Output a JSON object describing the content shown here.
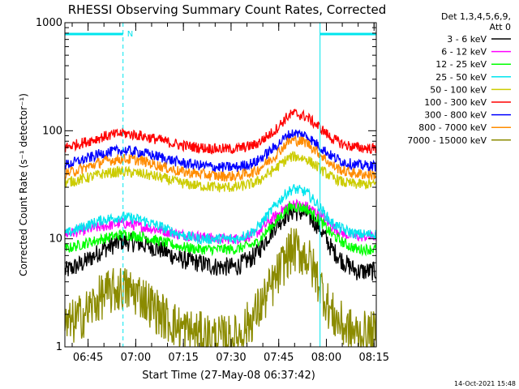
{
  "chart_data": {
    "type": "line",
    "title": "RHESSI Observing Summary Count Rates, Corrected",
    "xlabel": "Start Time (27-May-08 06:37:42)",
    "ylabel": "Corrected Count Rate (s⁻¹ detector⁻¹)",
    "yscale": "log",
    "ylim": [
      1,
      1000
    ],
    "xlim_minutes": [
      0,
      98
    ],
    "x_ticks": [
      {
        "label": "06:45",
        "minutes": 7.3
      },
      {
        "label": "07:00",
        "minutes": 22.3
      },
      {
        "label": "07:15",
        "minutes": 37.3
      },
      {
        "label": "07:30",
        "minutes": 52.3
      },
      {
        "label": "07:45",
        "minutes": 67.3
      },
      {
        "label": "08:00",
        "minutes": 82.3
      },
      {
        "label": "08:15",
        "minutes": 97.3
      }
    ],
    "y_ticks": [
      {
        "label": "1",
        "value": 1
      },
      {
        "label": "10",
        "value": 10
      },
      {
        "label": "100",
        "value": 100
      },
      {
        "label": "1000",
        "value": 1000
      }
    ],
    "grid": false,
    "legend_position": "right",
    "legend_header": [
      "Det 1,3,4,5,6,9,",
      "Att 0"
    ],
    "series": [
      {
        "name": "3 - 6 keV",
        "color": "#000000",
        "x": [
          0,
          6,
          12,
          18,
          24,
          30,
          36,
          42,
          48,
          54,
          60,
          66,
          70,
          72,
          76,
          80,
          84,
          88,
          92,
          98
        ],
        "values": [
          5,
          6,
          8,
          9.5,
          9,
          8,
          6.5,
          6,
          5.5,
          5.5,
          7,
          13,
          17,
          18,
          17,
          13,
          8,
          6,
          5,
          5
        ]
      },
      {
        "name": "6 - 12 keV",
        "color": "#ff00ff",
        "x": [
          0,
          6,
          12,
          18,
          24,
          30,
          36,
          42,
          48,
          54,
          60,
          66,
          70,
          72,
          76,
          80,
          84,
          88,
          92,
          98
        ],
        "values": [
          11,
          12,
          13,
          14,
          13,
          12,
          11,
          10.5,
          10,
          10,
          11,
          16,
          20,
          21,
          20,
          17,
          13,
          11,
          10.5,
          10.5
        ]
      },
      {
        "name": "12 - 25 keV",
        "color": "#00ff00",
        "x": [
          0,
          6,
          12,
          18,
          24,
          30,
          36,
          42,
          48,
          54,
          60,
          66,
          70,
          72,
          76,
          80,
          84,
          88,
          92,
          98
        ],
        "values": [
          8,
          9,
          10,
          11,
          10.5,
          9.5,
          8.5,
          8,
          8,
          8,
          9,
          14,
          19,
          20,
          19,
          15,
          11,
          9,
          8,
          8
        ]
      },
      {
        "name": "25 - 50 keV",
        "color": "#00e5ee",
        "x": [
          0,
          6,
          12,
          18,
          24,
          30,
          36,
          42,
          48,
          54,
          60,
          66,
          70,
          72,
          76,
          80,
          84,
          88,
          92,
          98
        ],
        "values": [
          11,
          13,
          15,
          16,
          15,
          13,
          11,
          10,
          10,
          10,
          12,
          20,
          27,
          29,
          27,
          20,
          14,
          12,
          11,
          11
        ]
      },
      {
        "name": "50 - 100 keV",
        "color": "#cccc00",
        "x": [
          0,
          6,
          12,
          18,
          24,
          30,
          36,
          42,
          48,
          54,
          60,
          66,
          70,
          72,
          76,
          80,
          84,
          88,
          92,
          98
        ],
        "values": [
          33,
          36,
          40,
          42,
          40,
          37,
          33,
          31,
          30,
          30,
          33,
          44,
          55,
          58,
          55,
          45,
          37,
          33,
          32,
          32
        ]
      },
      {
        "name": "100 - 300 keV",
        "color": "#ff0000",
        "x": [
          0,
          6,
          12,
          18,
          24,
          30,
          36,
          42,
          48,
          54,
          60,
          66,
          70,
          72,
          76,
          80,
          84,
          88,
          92,
          98
        ],
        "values": [
          70,
          78,
          88,
          95,
          90,
          82,
          74,
          70,
          68,
          68,
          74,
          100,
          135,
          145,
          135,
          108,
          85,
          74,
          70,
          68
        ]
      },
      {
        "name": "300 - 800 keV",
        "color": "#0000ff",
        "x": [
          0,
          6,
          12,
          18,
          24,
          30,
          36,
          42,
          48,
          54,
          60,
          66,
          70,
          72,
          76,
          80,
          84,
          88,
          92,
          98
        ],
        "values": [
          48,
          54,
          62,
          66,
          63,
          57,
          51,
          48,
          46,
          46,
          51,
          70,
          90,
          95,
          90,
          72,
          58,
          51,
          48,
          47
        ]
      },
      {
        "name": "800 - 7000 keV",
        "color": "#ff8c00",
        "x": [
          0,
          6,
          12,
          18,
          24,
          30,
          36,
          42,
          48,
          54,
          60,
          66,
          70,
          72,
          76,
          80,
          84,
          88,
          92,
          98
        ],
        "values": [
          40,
          45,
          52,
          55,
          53,
          47,
          42,
          40,
          38,
          38,
          42,
          58,
          78,
          82,
          78,
          62,
          48,
          42,
          40,
          39
        ]
      },
      {
        "name": "7000 - 15000 keV",
        "color": "#8b8b00",
        "x": [
          0,
          6,
          12,
          18,
          24,
          30,
          36,
          42,
          48,
          54,
          60,
          66,
          70,
          72,
          76,
          80,
          84,
          88,
          92,
          98
        ],
        "values": [
          1.5,
          2,
          3,
          3.5,
          3,
          2,
          1.5,
          1.3,
          1.2,
          1.2,
          2,
          4,
          7,
          8,
          7,
          4,
          2,
          1.5,
          1.3,
          1.3
        ]
      }
    ],
    "annotations": {
      "marker_letter": "N",
      "vertical_lines_solid_minutes": [
        0,
        80.3
      ],
      "vertical_lines_dashed_minutes": [
        18.3,
        98
      ]
    }
  },
  "footer_date": "14-Oct-2021 15:48"
}
